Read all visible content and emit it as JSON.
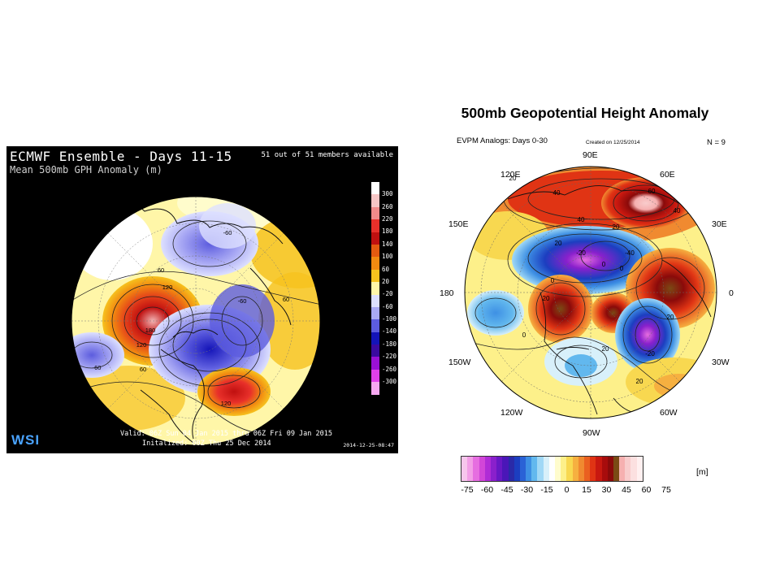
{
  "left_panel": {
    "title": "ECMWF Ensemble - Days 11-15",
    "subtitle": "Mean 500mb GPH Anomaly (m)",
    "members": "51 out of 51 members available",
    "valid": "Valid: 06Z Sun 04 Jan 2015 thru 06Z Fri 09 Jan 2015",
    "initialized": "Initalized: 00Z Thu 25 Dec 2014",
    "timestamp": "2014-12-25-08:47",
    "logo": "WSI",
    "colorbar": {
      "labels": [
        "300",
        "260",
        "220",
        "180",
        "140",
        "100",
        "60",
        "20",
        "-20",
        "-60",
        "-100",
        "-140",
        "-180",
        "-220",
        "-260",
        "-300"
      ],
      "colors": [
        "#ffffff",
        "#f6c6c6",
        "#f08a8a",
        "#e8302a",
        "#c01010",
        "#e45a10",
        "#f28a10",
        "#f6c21e",
        "#fff6a8",
        "#dde0ff",
        "#a9a9f4",
        "#5c5cde",
        "#1414b8",
        "#3a0aa0",
        "#9a10d6",
        "#e040e8",
        "#f6a8f0"
      ],
      "anomaly_labels": [
        "60",
        "120",
        "180",
        "120",
        "60",
        "-60",
        "-60",
        "60",
        "120",
        "-60"
      ]
    }
  },
  "right_panel": {
    "title": "500mb Geopotential Height Anomaly",
    "subtitle": "EVPM  Analogs:  Days  0-30",
    "created": "Created on 12/25/2014",
    "n": "N = 9",
    "longitudes": [
      "90E",
      "120E",
      "60E",
      "150E",
      "30E",
      "180",
      "0",
      "150W",
      "30W",
      "120W",
      "60W",
      "90W"
    ],
    "contour_labels": [
      "20",
      "40",
      "60",
      "40",
      "40",
      "20",
      "20",
      "-20",
      "-40",
      "0",
      "0",
      "20",
      "-20",
      "0",
      "20",
      "20",
      "0",
      "20"
    ],
    "colorbar": {
      "labels": [
        "-75",
        "-60",
        "-45",
        "-30",
        "-15",
        "0",
        "15",
        "30",
        "45",
        "60",
        "75"
      ],
      "unit": "[m]",
      "colors": [
        "#f7c6ec",
        "#f29ee6",
        "#e66ee0",
        "#d246d8",
        "#b02cd6",
        "#8a20cc",
        "#6818c4",
        "#4a16b8",
        "#2a2aa8",
        "#1c3ec0",
        "#2a62d6",
        "#3e90e4",
        "#62b8ee",
        "#a0d8f6",
        "#d8f0fa",
        "#ffffff",
        "#fffccc",
        "#fdf08a",
        "#f8d850",
        "#f6b040",
        "#f08a30",
        "#ea6020",
        "#e03414",
        "#c81810",
        "#a80c0c",
        "#8a0a0a",
        "#7a4a14",
        "#f6b0b0",
        "#f8cccc",
        "#fce0e0",
        "#fff0f0"
      ]
    }
  }
}
